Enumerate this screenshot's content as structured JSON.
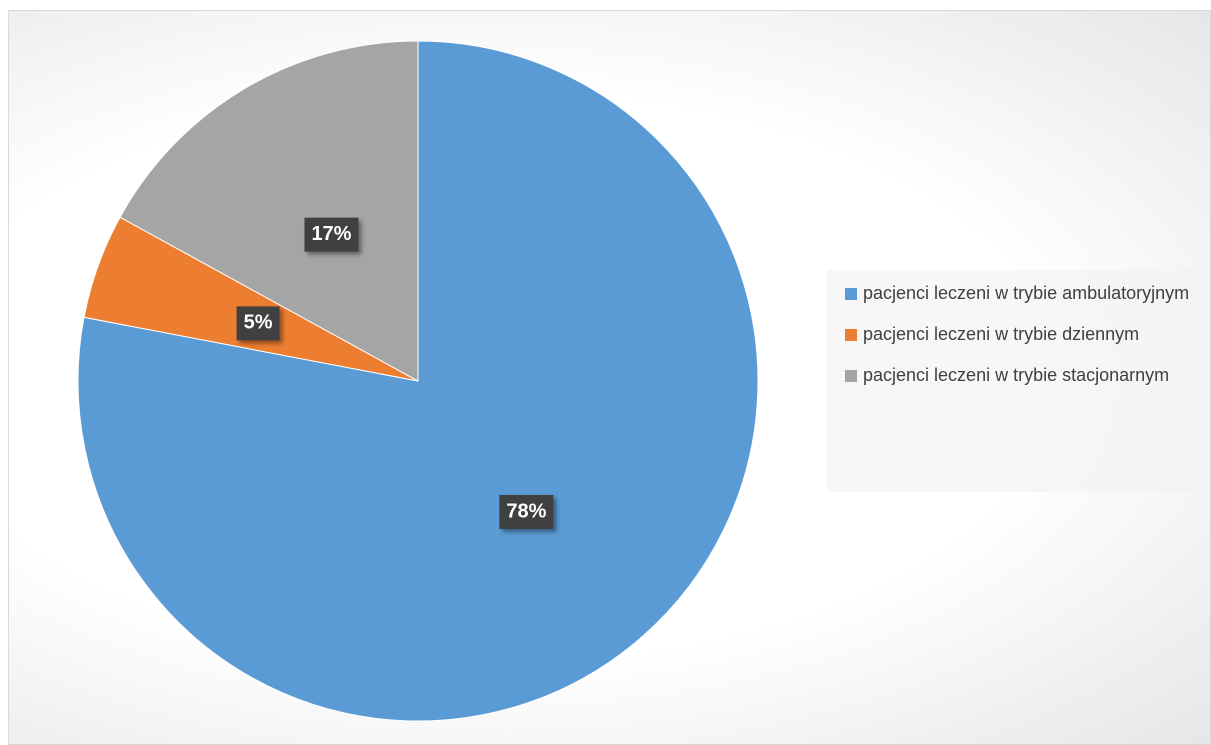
{
  "chart_data": {
    "type": "pie",
    "categories": [
      "pacjenci leczeni w trybie ambulatoryjnym",
      "pacjenci leczeni w trybie dziennym",
      "pacjenci leczeni w trybie stacjonarnym"
    ],
    "values": [
      78,
      5,
      17
    ],
    "value_labels": [
      "78%",
      "5%",
      "17%"
    ],
    "colors": [
      "#5b9bd5",
      "#ed7d31",
      "#a5a5a5"
    ],
    "legend": "right"
  }
}
